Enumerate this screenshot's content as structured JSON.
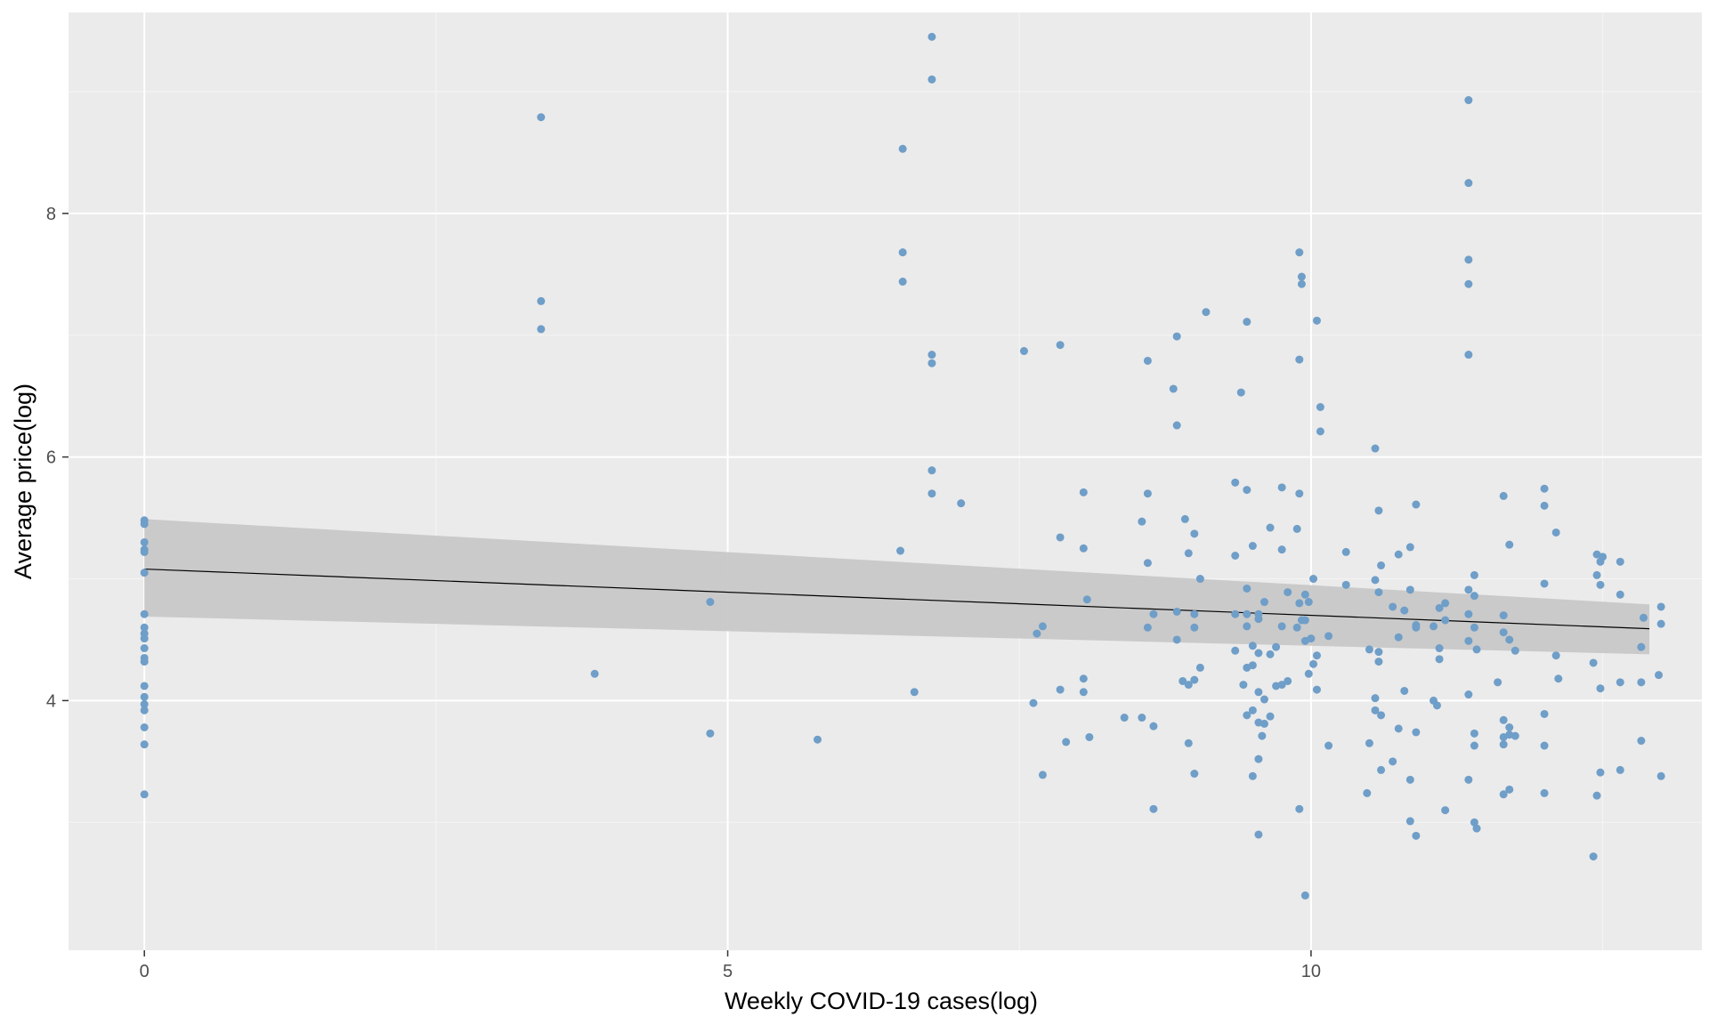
{
  "chart_data": {
    "type": "scatter",
    "title": "",
    "xlabel": "Weekly COVID-19 cases(log)",
    "ylabel": "Average price(log)",
    "xlim": [
      -0.65,
      13.35
    ],
    "ylim": [
      1.95,
      9.65
    ],
    "xticks": [
      0,
      5,
      10
    ],
    "yticks": [
      4,
      6,
      8
    ],
    "grid": true,
    "legend": "none",
    "colors": {
      "panel": "#ebebeb",
      "grid_major": "#ffffff",
      "grid_minor": "#f5f5f5",
      "point": "#6f9ec8",
      "ribbon": "#c8c8c8",
      "trend": "#000000",
      "tick_label": "#4d4d4d"
    },
    "trend": {
      "method": "lm",
      "x": [
        0,
        12.9
      ],
      "y": [
        5.08,
        4.59
      ],
      "ci_lower": [
        4.69,
        4.38
      ],
      "ci_upper": [
        5.49,
        4.79
      ]
    },
    "points": [
      [
        0,
        5.48
      ],
      [
        0,
        5.45
      ],
      [
        0,
        5.3
      ],
      [
        0,
        5.24
      ],
      [
        0,
        5.22
      ],
      [
        0,
        5.05
      ],
      [
        0,
        4.71
      ],
      [
        0,
        4.6
      ],
      [
        0,
        4.55
      ],
      [
        0,
        4.51
      ],
      [
        0,
        4.43
      ],
      [
        0,
        4.35
      ],
      [
        0,
        4.32
      ],
      [
        0,
        4.12
      ],
      [
        0,
        4.03
      ],
      [
        0,
        3.97
      ],
      [
        0,
        3.92
      ],
      [
        0,
        3.78
      ],
      [
        0,
        3.64
      ],
      [
        0,
        3.23
      ],
      [
        3.4,
        8.79
      ],
      [
        3.4,
        7.28
      ],
      [
        3.4,
        7.05
      ],
      [
        3.86,
        4.22
      ],
      [
        4.85,
        4.81
      ],
      [
        4.85,
        3.73
      ],
      [
        5.77,
        3.68
      ],
      [
        6.5,
        8.53
      ],
      [
        6.5,
        7.68
      ],
      [
        6.5,
        7.44
      ],
      [
        6.48,
        5.23
      ],
      [
        6.75,
        9.45
      ],
      [
        6.75,
        9.1
      ],
      [
        6.75,
        6.84
      ],
      [
        6.75,
        6.77
      ],
      [
        6.75,
        5.89
      ],
      [
        6.75,
        5.7
      ],
      [
        6.6,
        4.07
      ],
      [
        7.0,
        5.62
      ],
      [
        7.54,
        6.87
      ],
      [
        7.85,
        6.92
      ],
      [
        7.85,
        5.34
      ],
      [
        8.05,
        5.71
      ],
      [
        8.05,
        5.25
      ],
      [
        8.08,
        4.83
      ],
      [
        7.65,
        4.55
      ],
      [
        7.7,
        4.61
      ],
      [
        7.85,
        4.09
      ],
      [
        8.05,
        4.18
      ],
      [
        8.05,
        4.07
      ],
      [
        7.62,
        3.98
      ],
      [
        7.9,
        3.66
      ],
      [
        8.1,
        3.7
      ],
      [
        7.7,
        3.39
      ],
      [
        8.4,
        3.86
      ],
      [
        8.55,
        3.86
      ],
      [
        8.6,
        5.7
      ],
      [
        8.55,
        5.47
      ],
      [
        8.6,
        5.13
      ],
      [
        8.65,
        4.71
      ],
      [
        8.6,
        4.6
      ],
      [
        8.65,
        3.79
      ],
      [
        8.65,
        3.11
      ],
      [
        8.6,
        6.79
      ],
      [
        8.85,
        6.99
      ],
      [
        8.82,
        6.56
      ],
      [
        8.85,
        6.26
      ],
      [
        9.1,
        7.19
      ],
      [
        9.0,
        5.37
      ],
      [
        8.92,
        5.49
      ],
      [
        8.95,
        5.21
      ],
      [
        9.05,
        5.0
      ],
      [
        8.85,
        4.73
      ],
      [
        9.0,
        4.71
      ],
      [
        8.85,
        4.5
      ],
      [
        9.0,
        4.6
      ],
      [
        9.05,
        4.27
      ],
      [
        8.9,
        4.16
      ],
      [
        8.95,
        4.13
      ],
      [
        9.0,
        4.17
      ],
      [
        8.95,
        3.65
      ],
      [
        9.0,
        3.4
      ],
      [
        9.45,
        7.11
      ],
      [
        9.4,
        6.53
      ],
      [
        9.35,
        5.79
      ],
      [
        9.45,
        5.73
      ],
      [
        9.5,
        5.27
      ],
      [
        9.35,
        5.19
      ],
      [
        9.45,
        4.92
      ],
      [
        9.35,
        4.71
      ],
      [
        9.45,
        4.71
      ],
      [
        9.55,
        4.71
      ],
      [
        9.6,
        4.81
      ],
      [
        9.55,
        4.67
      ],
      [
        9.45,
        4.61
      ],
      [
        9.35,
        4.41
      ],
      [
        9.5,
        4.45
      ],
      [
        9.55,
        4.39
      ],
      [
        9.45,
        4.27
      ],
      [
        9.5,
        4.29
      ],
      [
        9.42,
        4.13
      ],
      [
        9.55,
        4.07
      ],
      [
        9.6,
        4.01
      ],
      [
        9.5,
        3.92
      ],
      [
        9.45,
        3.88
      ],
      [
        9.65,
        3.87
      ],
      [
        9.55,
        3.82
      ],
      [
        9.6,
        3.81
      ],
      [
        9.58,
        3.71
      ],
      [
        9.55,
        3.52
      ],
      [
        9.5,
        3.38
      ],
      [
        9.55,
        2.9
      ],
      [
        9.75,
        5.75
      ],
      [
        9.65,
        5.42
      ],
      [
        9.75,
        5.24
      ],
      [
        9.8,
        4.89
      ],
      [
        9.75,
        4.61
      ],
      [
        9.7,
        4.44
      ],
      [
        9.65,
        4.38
      ],
      [
        9.75,
        4.13
      ],
      [
        9.8,
        4.16
      ],
      [
        9.7,
        4.12
      ],
      [
        9.9,
        7.68
      ],
      [
        9.92,
        7.48
      ],
      [
        9.92,
        7.42
      ],
      [
        9.9,
        6.8
      ],
      [
        9.9,
        5.7
      ],
      [
        9.88,
        5.41
      ],
      [
        9.95,
        4.87
      ],
      [
        9.9,
        4.8
      ],
      [
        9.98,
        4.81
      ],
      [
        9.92,
        4.66
      ],
      [
        9.95,
        4.66
      ],
      [
        9.88,
        4.6
      ],
      [
        10.0,
        4.51
      ],
      [
        9.95,
        4.49
      ],
      [
        9.98,
        4.22
      ],
      [
        10.02,
        4.3
      ],
      [
        10.05,
        4.09
      ],
      [
        9.9,
        3.11
      ],
      [
        9.95,
        2.4
      ],
      [
        10.05,
        7.12
      ],
      [
        10.08,
        6.41
      ],
      [
        10.08,
        6.21
      ],
      [
        10.02,
        5.0
      ],
      [
        10.05,
        4.37
      ],
      [
        10.15,
        4.53
      ],
      [
        10.15,
        3.63
      ],
      [
        10.3,
        5.22
      ],
      [
        10.3,
        4.95
      ],
      [
        10.55,
        6.07
      ],
      [
        10.58,
        5.56
      ],
      [
        10.6,
        5.11
      ],
      [
        10.55,
        4.99
      ],
      [
        10.58,
        4.89
      ],
      [
        10.5,
        4.42
      ],
      [
        10.58,
        4.4
      ],
      [
        10.58,
        4.32
      ],
      [
        10.55,
        4.02
      ],
      [
        10.55,
        3.92
      ],
      [
        10.6,
        3.88
      ],
      [
        10.5,
        3.65
      ],
      [
        10.6,
        3.43
      ],
      [
        10.48,
        3.24
      ],
      [
        10.9,
        5.61
      ],
      [
        10.85,
        5.26
      ],
      [
        10.75,
        5.2
      ],
      [
        10.7,
        4.77
      ],
      [
        10.85,
        4.91
      ],
      [
        10.8,
        4.74
      ],
      [
        10.75,
        4.52
      ],
      [
        10.9,
        4.62
      ],
      [
        10.9,
        4.6
      ],
      [
        10.8,
        4.08
      ],
      [
        10.9,
        3.74
      ],
      [
        10.7,
        3.5
      ],
      [
        10.75,
        3.77
      ],
      [
        10.85,
        3.35
      ],
      [
        10.85,
        3.01
      ],
      [
        10.9,
        2.89
      ],
      [
        11.15,
        4.8
      ],
      [
        11.1,
        4.76
      ],
      [
        11.15,
        4.66
      ],
      [
        11.05,
        4.61
      ],
      [
        11.1,
        4.43
      ],
      [
        11.1,
        4.34
      ],
      [
        11.05,
        4.0
      ],
      [
        11.08,
        3.96
      ],
      [
        11.15,
        3.1
      ],
      [
        11.35,
        8.93
      ],
      [
        11.35,
        8.25
      ],
      [
        11.35,
        7.62
      ],
      [
        11.35,
        7.42
      ],
      [
        11.35,
        6.84
      ],
      [
        11.4,
        5.03
      ],
      [
        11.35,
        4.91
      ],
      [
        11.4,
        4.86
      ],
      [
        11.35,
        4.71
      ],
      [
        11.4,
        4.6
      ],
      [
        11.35,
        4.49
      ],
      [
        11.42,
        4.42
      ],
      [
        11.35,
        4.05
      ],
      [
        11.4,
        3.73
      ],
      [
        11.4,
        3.63
      ],
      [
        11.35,
        3.35
      ],
      [
        11.4,
        3.0
      ],
      [
        11.42,
        2.95
      ],
      [
        11.65,
        5.68
      ],
      [
        11.7,
        5.28
      ],
      [
        11.65,
        4.7
      ],
      [
        11.65,
        4.56
      ],
      [
        11.7,
        4.5
      ],
      [
        11.75,
        4.41
      ],
      [
        11.6,
        4.15
      ],
      [
        11.65,
        3.84
      ],
      [
        11.7,
        3.78
      ],
      [
        11.7,
        3.72
      ],
      [
        11.65,
        3.7
      ],
      [
        11.65,
        3.64
      ],
      [
        11.75,
        3.71
      ],
      [
        11.7,
        3.27
      ],
      [
        11.65,
        3.23
      ],
      [
        12.0,
        5.74
      ],
      [
        12.0,
        5.6
      ],
      [
        12.1,
        5.38
      ],
      [
        12.0,
        4.96
      ],
      [
        12.1,
        4.37
      ],
      [
        12.12,
        4.18
      ],
      [
        12.0,
        3.89
      ],
      [
        12.0,
        3.63
      ],
      [
        12.0,
        3.24
      ],
      [
        12.45,
        5.2
      ],
      [
        12.5,
        5.18
      ],
      [
        12.48,
        5.14
      ],
      [
        12.45,
        5.03
      ],
      [
        12.48,
        4.95
      ],
      [
        12.42,
        4.31
      ],
      [
        12.48,
        4.1
      ],
      [
        12.48,
        3.41
      ],
      [
        12.45,
        3.22
      ],
      [
        12.42,
        2.72
      ],
      [
        12.65,
        5.14
      ],
      [
        12.65,
        4.87
      ],
      [
        12.65,
        4.15
      ],
      [
        12.65,
        3.43
      ],
      [
        12.85,
        4.68
      ],
      [
        12.83,
        4.44
      ],
      [
        12.83,
        4.15
      ],
      [
        12.83,
        3.67
      ],
      [
        13.0,
        4.77
      ],
      [
        13.0,
        4.63
      ],
      [
        12.98,
        4.21
      ],
      [
        13.0,
        3.38
      ]
    ]
  }
}
